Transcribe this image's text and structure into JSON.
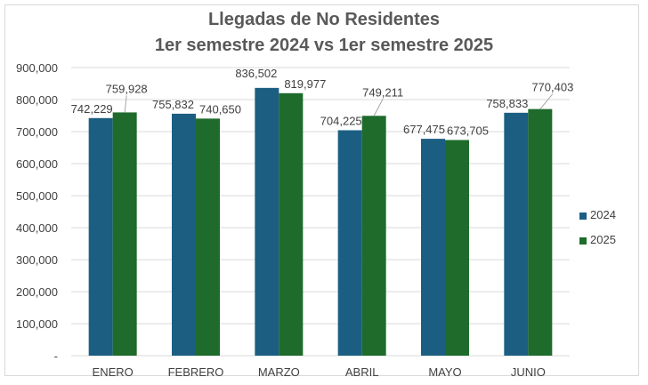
{
  "chart_data": {
    "type": "bar",
    "title_line1": "Llegadas de No Residentes",
    "title_line2": "1er semestre 2024 vs 1er semestre 2025",
    "categories": [
      "ENERO",
      "FEBRERO",
      "MARZO",
      "ABRIL",
      "MAYO",
      "JUNIO"
    ],
    "series": [
      {
        "name": "2024",
        "color": "#1b5e82",
        "values": [
          742229,
          755832,
          836502,
          704225,
          677475,
          758833
        ],
        "labels": [
          "742,229",
          "755,832",
          "836,502",
          "704,225",
          "677,475",
          "758,833"
        ]
      },
      {
        "name": "2025",
        "color": "#1e6b2c",
        "values": [
          759928,
          740650,
          819977,
          749211,
          673705,
          770403
        ],
        "labels": [
          "759,928",
          "740,650",
          "819,977",
          "749,211",
          "673,705",
          "770,403"
        ]
      }
    ],
    "yticks": [
      "-",
      "100,000",
      "200,000",
      "300,000",
      "400,000",
      "500,000",
      "600,000",
      "700,000",
      "800,000",
      "900,000"
    ],
    "ylim": [
      0,
      900000
    ],
    "grid": true,
    "legend": "right",
    "gridline_color": "#d9d9d9"
  }
}
